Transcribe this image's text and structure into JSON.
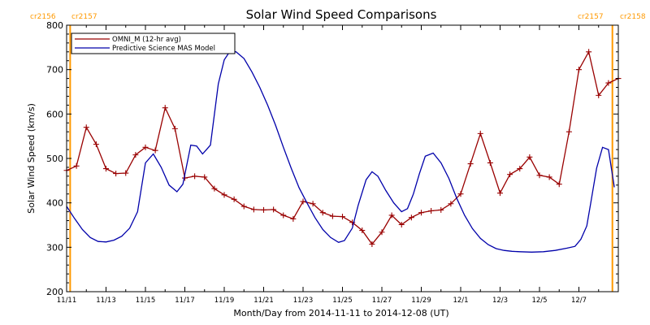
{
  "chart_data": {
    "type": "line",
    "title": "Solar Wind Speed Comparisons",
    "xlabel": "Month/Day from 2014-11-11 to 2014-12-08 (UT)",
    "ylabel": "Solar Wind Speed (km/s)",
    "xlim": [
      0,
      28
    ],
    "ylim": [
      200,
      800
    ],
    "y_ticks": [
      200,
      300,
      400,
      500,
      600,
      700,
      800
    ],
    "x_ticks": [
      {
        "day": 0,
        "label": "11/11"
      },
      {
        "day": 2,
        "label": "11/13"
      },
      {
        "day": 4,
        "label": "11/15"
      },
      {
        "day": 6,
        "label": "11/17"
      },
      {
        "day": 8,
        "label": "11/19"
      },
      {
        "day": 10,
        "label": "11/21"
      },
      {
        "day": 12,
        "label": "11/23"
      },
      {
        "day": 14,
        "label": "11/25"
      },
      {
        "day": 16,
        "label": "11/27"
      },
      {
        "day": 18,
        "label": "11/29"
      },
      {
        "day": 20,
        "label": "12/1"
      },
      {
        "day": 22,
        "label": "12/3"
      },
      {
        "day": 24,
        "label": "12/5"
      },
      {
        "day": 26,
        "label": "12/7"
      }
    ],
    "legend_position": "top-left",
    "carrington_markers": [
      {
        "day": 0.18,
        "left_label": "cr2156",
        "right_label": "cr2157",
        "color": "#ff9900"
      },
      {
        "day": 27.7,
        "left_label": "cr2157",
        "right_label": "cr2158",
        "color": "#ff9900"
      }
    ],
    "series": [
      {
        "name": "OMNI_M (12-hr avg)",
        "color": "#990000",
        "marker": "plus",
        "x": [
          0,
          0.5,
          1,
          1.5,
          2,
          2.5,
          3,
          3.5,
          4,
          4.5,
          5,
          5.5,
          6,
          6.5,
          7,
          7.5,
          8,
          8.5,
          9,
          9.5,
          10,
          10.5,
          11,
          11.5,
          12,
          12.5,
          13,
          13.5,
          14,
          14.5,
          15,
          15.5,
          16,
          16.5,
          17,
          17.5,
          18,
          18.5,
          19,
          19.5,
          20,
          20.5,
          21,
          21.5,
          22,
          22.5,
          23,
          23.5,
          24,
          24.5,
          25,
          25.5,
          26,
          26.5,
          27,
          27.5,
          28
        ],
        "values": [
          473,
          483,
          570,
          532,
          477,
          466,
          467,
          508,
          525,
          518,
          614,
          567,
          456,
          460,
          458,
          432,
          418,
          408,
          392,
          385,
          384,
          385,
          372,
          364,
          403,
          398,
          378,
          370,
          369,
          356,
          338,
          307,
          334,
          372,
          351,
          367,
          378,
          382,
          384,
          398,
          420,
          488,
          556,
          490,
          422,
          464,
          477,
          503,
          462,
          458,
          442,
          560,
          700,
          740,
          642,
          670,
          680
        ]
      },
      {
        "name": "Predictive Science MAS Model",
        "color": "#0000aa",
        "marker": "none",
        "x": [
          0,
          0.4,
          0.8,
          1.2,
          1.6,
          2.0,
          2.4,
          2.8,
          3.2,
          3.6,
          4.0,
          4.4,
          4.8,
          5.2,
          5.6,
          5.9,
          6.3,
          6.6,
          6.9,
          7.3,
          7.7,
          8.0,
          8.3,
          8.6,
          9.0,
          9.4,
          9.8,
          10.2,
          10.6,
          11.0,
          11.4,
          11.8,
          12.2,
          12.6,
          13.0,
          13.4,
          13.8,
          14.1,
          14.5,
          14.8,
          15.2,
          15.5,
          15.8,
          16.2,
          16.6,
          17.0,
          17.3,
          17.6,
          17.9,
          18.2,
          18.6,
          19.0,
          19.4,
          19.8,
          20.2,
          20.6,
          21.0,
          21.4,
          21.8,
          22.2,
          22.6,
          23.0,
          23.6,
          24.2,
          24.8,
          25.4,
          25.8,
          26.1,
          26.4,
          26.6,
          26.9,
          27.2,
          27.5,
          27.8
        ],
        "values": [
          392,
          365,
          340,
          322,
          313,
          312,
          316,
          325,
          343,
          380,
          490,
          510,
          480,
          440,
          425,
          442,
          530,
          528,
          510,
          530,
          668,
          722,
          742,
          740,
          725,
          695,
          660,
          620,
          575,
          525,
          478,
          434,
          400,
          367,
          340,
          322,
          311,
          315,
          343,
          395,
          452,
          470,
          460,
          428,
          400,
          380,
          387,
          420,
          465,
          505,
          512,
          490,
          455,
          410,
          372,
          342,
          320,
          306,
          297,
          293,
          291,
          290,
          289,
          290,
          293,
          298,
          302,
          318,
          348,
          400,
          478,
          525,
          520,
          435
        ]
      }
    ]
  }
}
